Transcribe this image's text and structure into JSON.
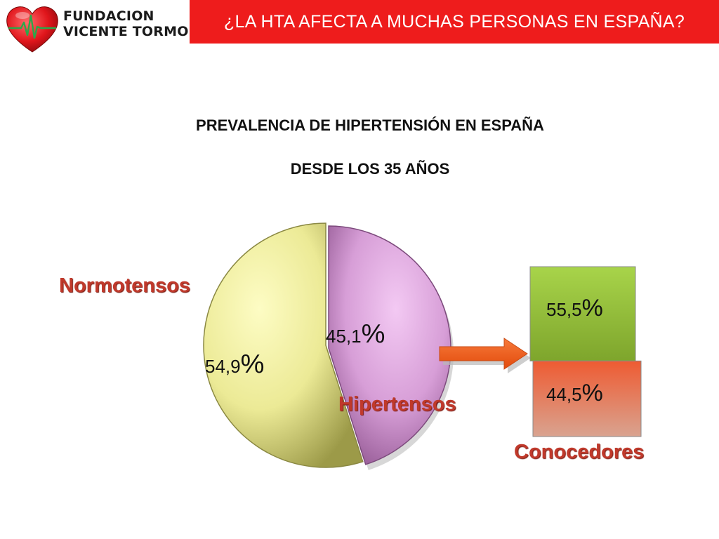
{
  "header": {
    "logo_line1": "FUNDACION",
    "logo_line2": "VICENTE TORMO",
    "logo_icon": "heart-ecg-icon",
    "title": "¿LA HTA AFECTA A MUCHAS PERSONAS EN ESPAÑA?"
  },
  "colors": {
    "header_red": "#ee1c1c",
    "label_red": "#c0392b",
    "normotensos_yellow": "#e8e690",
    "hipertensos_violet": "#d39ad3",
    "conocedores_green": "#9bc83a",
    "no_conocedores_red": "#e95a3c",
    "arrow_orange": "#f05a14"
  },
  "chart_data": [
    {
      "type": "pie",
      "title": "PREVALENCIA DE HIPERTENSIÓN EN ESPAÑA",
      "subtitle": "DESDE LOS 35 AÑOS",
      "slices": [
        {
          "label": "Normotensos",
          "value": 54.9,
          "value_label": "54,9",
          "color": "#e8e690"
        },
        {
          "label": "Hipertensos",
          "value": 45.1,
          "value_label": "45,1",
          "color": "#d39ad3"
        }
      ],
      "exploded": "Hipertensos"
    },
    {
      "type": "bar",
      "stacked": true,
      "label": "Conocedores",
      "segments": [
        {
          "value": 55.5,
          "value_label": "55,5",
          "color": "#9bc83a"
        },
        {
          "value": 44.5,
          "value_label": "44,5",
          "color": "#e95a3c"
        }
      ],
      "source_slice": "Hipertensos"
    }
  ],
  "percent_symbol": "%"
}
